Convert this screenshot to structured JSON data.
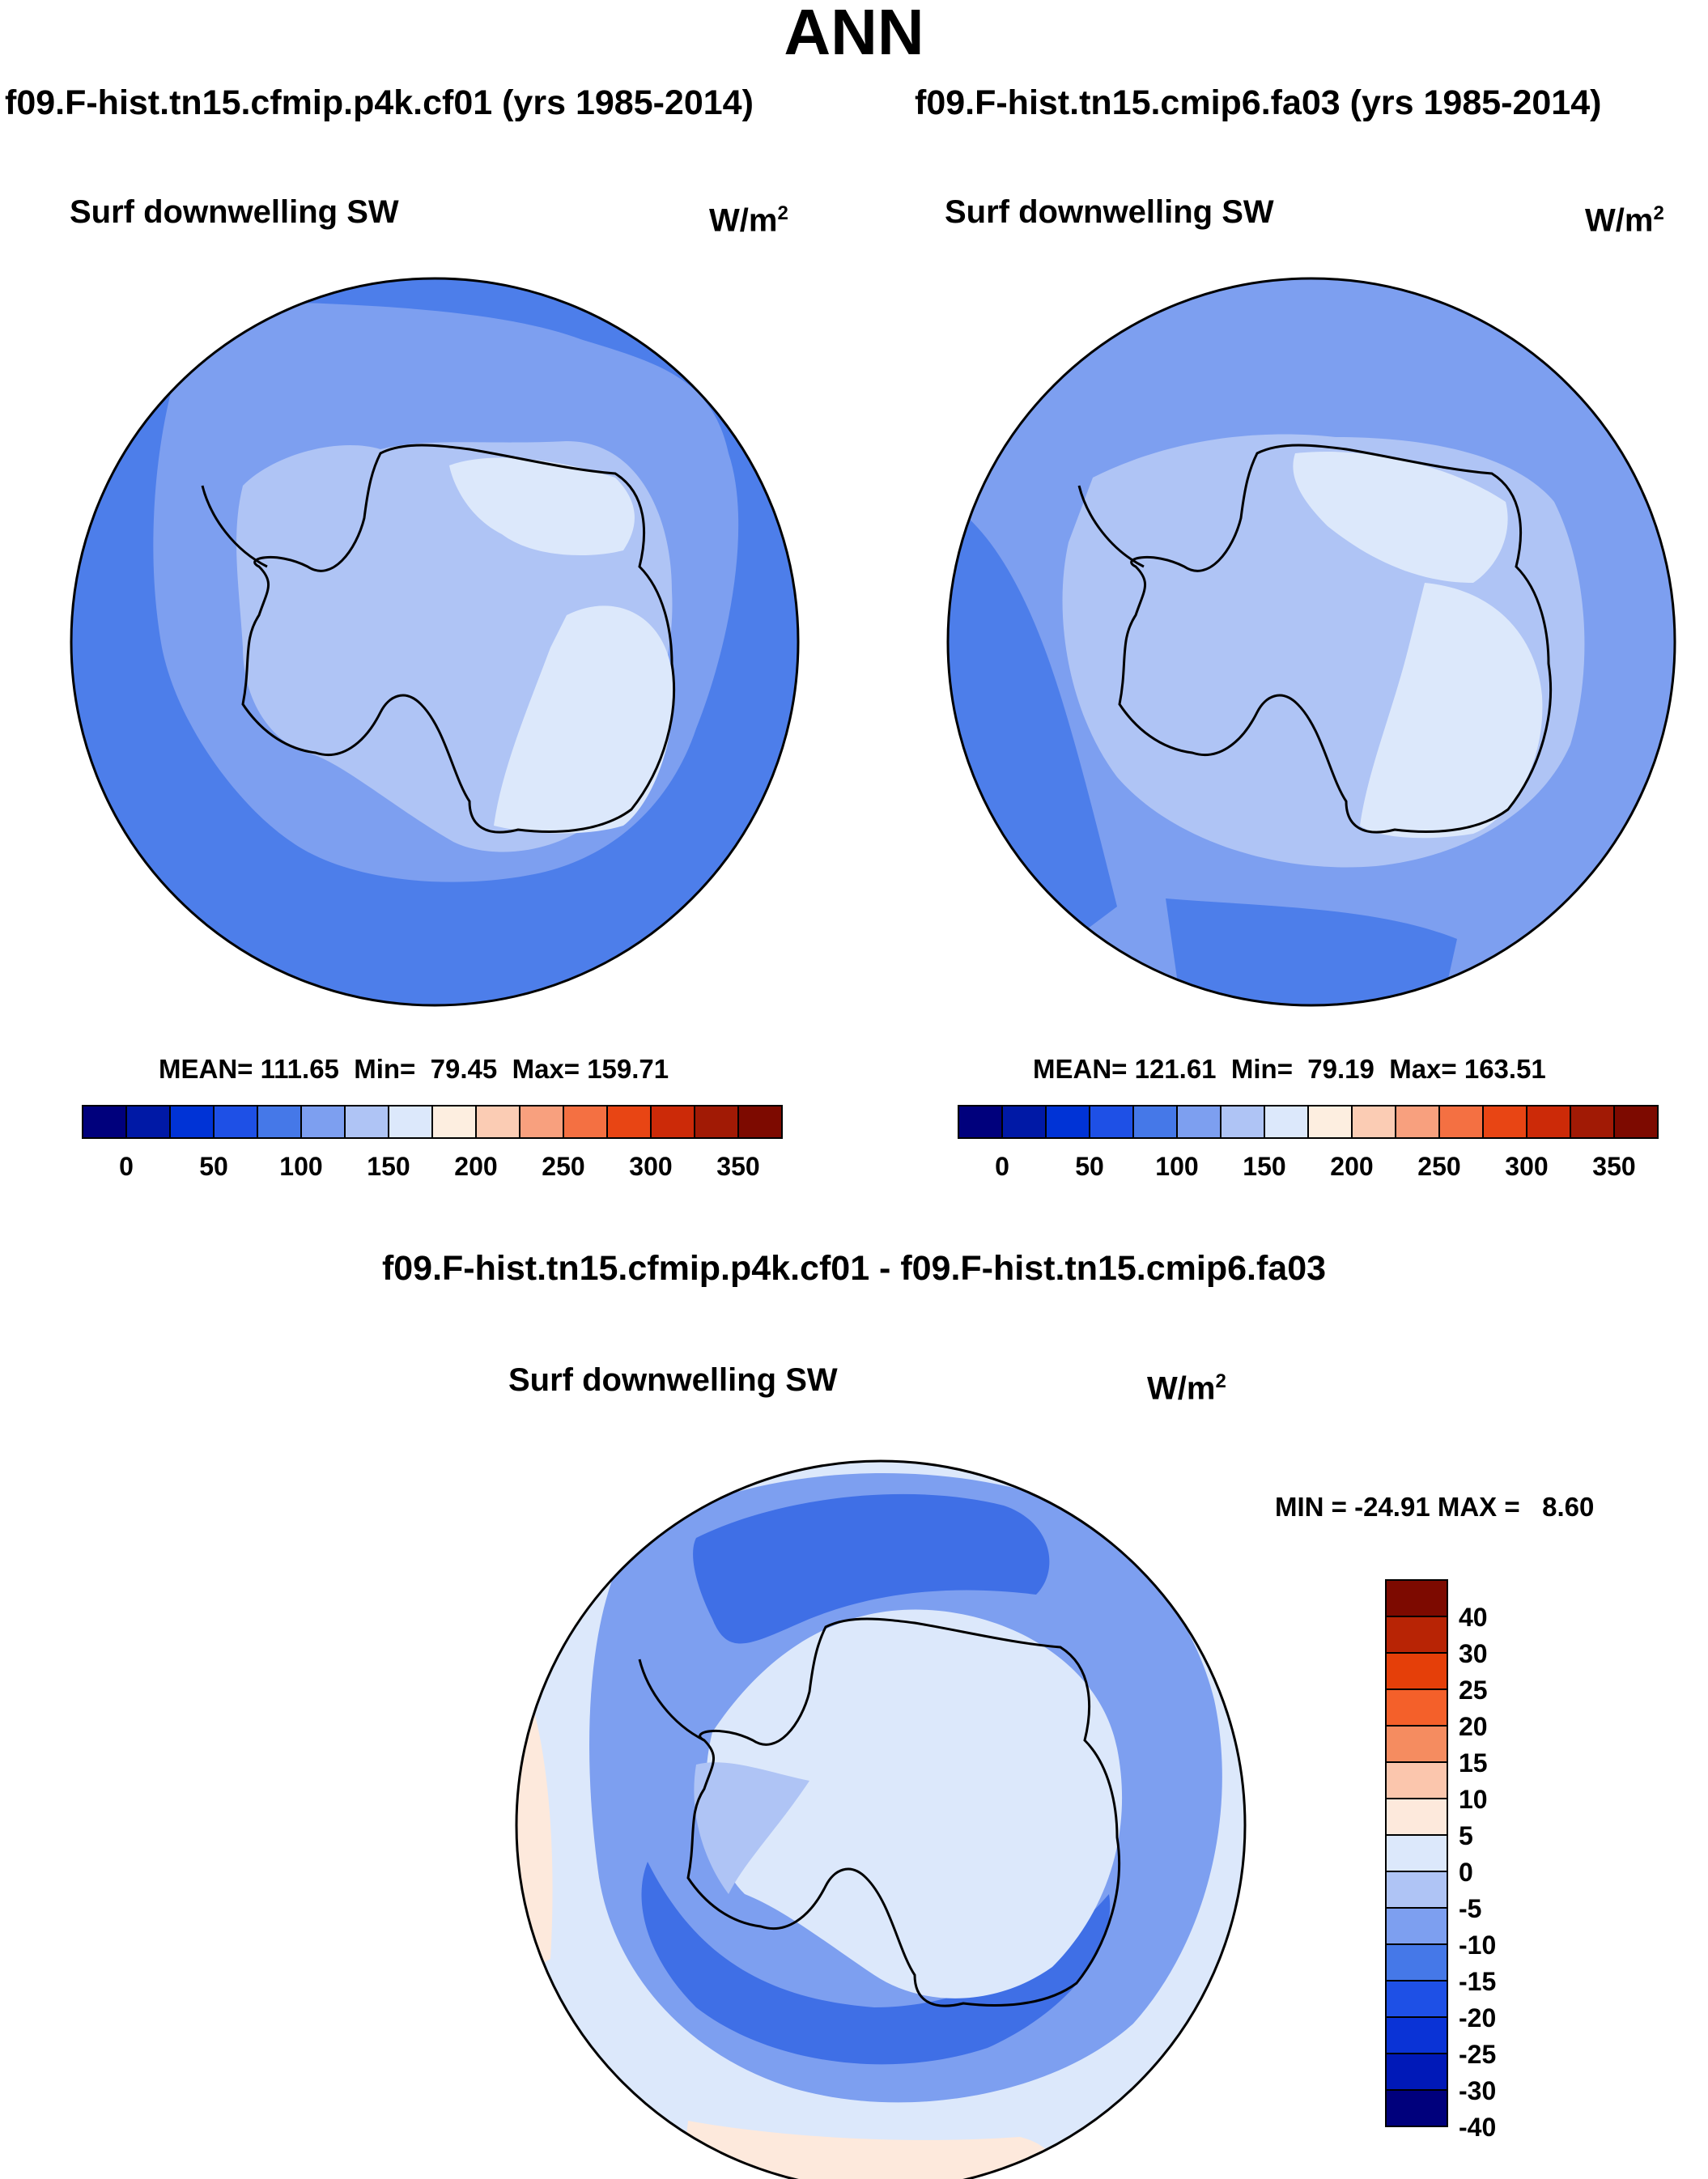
{
  "page": {
    "title": "ANN"
  },
  "colors": {
    "outline": "#000000",
    "abs_scale": [
      "#00007c",
      "#0019a6",
      "#0033d6",
      "#1e50e6",
      "#4578e8",
      "#7d9ff0",
      "#afc4f5",
      "#dce8fb",
      "#fdeee0",
      "#fbccb4",
      "#f8a07e",
      "#f47042",
      "#e84514",
      "#cc2a08",
      "#a11a05",
      "#7d0a00"
    ],
    "diff_scale": [
      "#7d0a00",
      "#b82405",
      "#e53f09",
      "#f4602a",
      "#f58c60",
      "#fbc6ad",
      "#fde9dc",
      "#dce8fb",
      "#afc4f5",
      "#7d9ff0",
      "#4578e8",
      "#1e50e6",
      "#0a33d6",
      "#0019b8",
      "#00007c"
    ]
  },
  "panels": [
    {
      "case_title": "f09.F-hist.tn15.cfmip.p4k.cf01 (yrs 1985-2014)",
      "variable": "Surf downwelling SW",
      "units_base": "W/m",
      "units_exp": "2",
      "stats": "MEAN= 111.65  Min=  79.45  Max= 159.71",
      "colorbar_labels": [
        "0",
        "50",
        "100",
        "150",
        "200",
        "250",
        "300",
        "350"
      ]
    },
    {
      "case_title": "f09.F-hist.tn15.cmip6.fa03 (yrs 1985-2014)",
      "variable": "Surf downwelling SW",
      "units_base": "W/m",
      "units_exp": "2",
      "stats": "MEAN= 121.61  Min=  79.19  Max= 163.51",
      "colorbar_labels": [
        "0",
        "50",
        "100",
        "150",
        "200",
        "250",
        "300",
        "350"
      ]
    }
  ],
  "difference": {
    "title": "f09.F-hist.tn15.cfmip.p4k.cf01 - f09.F-hist.tn15.cmip6.fa03",
    "variable": "Surf downwelling SW",
    "units_base": "W/m",
    "units_exp": "2",
    "stats": "MIN = -24.91 MAX =   8.60",
    "colorbar_labels": [
      "40",
      "30",
      "25",
      "20",
      "15",
      "10",
      "5",
      "0",
      "-5",
      "-10",
      "-15",
      "-20",
      "-25",
      "-30",
      "-40"
    ]
  }
}
